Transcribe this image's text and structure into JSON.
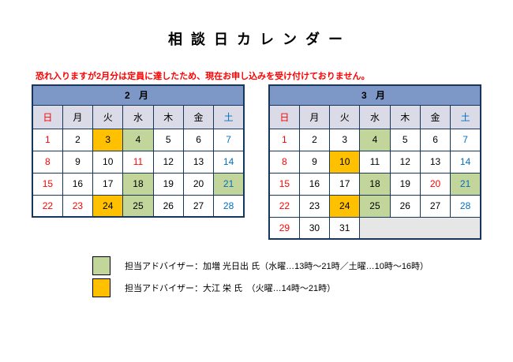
{
  "title": "相 談 日 カ レ ン ダ ー",
  "notice": "恐れ入りますが2月分は定員に達したため、現在お申し込みを受け付けておりません。",
  "colors": {
    "red": "#FF0000",
    "blue": "#0070C0",
    "green": "#C2D69B",
    "orange": "#FFC000",
    "header_bg": "#7D97C6",
    "dayrow_bg": "#DBDBE7",
    "empty_bg": "#E7E6E6",
    "border": "#16365C",
    "month_text": "#17375E",
    "text": "#000000"
  },
  "day_headers": [
    "日",
    "月",
    "火",
    "水",
    "木",
    "金",
    "土"
  ],
  "calendars": [
    {
      "month_label": "2 月",
      "weeks": [
        [
          {
            "d": "1",
            "c": "red"
          },
          {
            "d": "2"
          },
          {
            "d": "3",
            "bg": "orange"
          },
          {
            "d": "4",
            "bg": "green"
          },
          {
            "d": "5"
          },
          {
            "d": "6"
          },
          {
            "d": "7",
            "c": "blue"
          }
        ],
        [
          {
            "d": "8",
            "c": "red"
          },
          {
            "d": "9"
          },
          {
            "d": "10"
          },
          {
            "d": "11",
            "c": "red"
          },
          {
            "d": "12"
          },
          {
            "d": "13"
          },
          {
            "d": "14",
            "c": "blue"
          }
        ],
        [
          {
            "d": "15",
            "c": "red"
          },
          {
            "d": "16"
          },
          {
            "d": "17"
          },
          {
            "d": "18",
            "bg": "green"
          },
          {
            "d": "19"
          },
          {
            "d": "20"
          },
          {
            "d": "21",
            "c": "blue",
            "bg": "green"
          }
        ],
        [
          {
            "d": "22",
            "c": "red"
          },
          {
            "d": "23",
            "c": "red"
          },
          {
            "d": "24",
            "bg": "orange"
          },
          {
            "d": "25",
            "bg": "green"
          },
          {
            "d": "26"
          },
          {
            "d": "27"
          },
          {
            "d": "28",
            "c": "blue"
          }
        ]
      ]
    },
    {
      "month_label": "3 月",
      "weeks": [
        [
          {
            "d": "1",
            "c": "red"
          },
          {
            "d": "2"
          },
          {
            "d": "3"
          },
          {
            "d": "4",
            "bg": "green"
          },
          {
            "d": "5"
          },
          {
            "d": "6"
          },
          {
            "d": "7",
            "c": "blue"
          }
        ],
        [
          {
            "d": "8",
            "c": "red"
          },
          {
            "d": "9"
          },
          {
            "d": "10",
            "bg": "orange"
          },
          {
            "d": "11"
          },
          {
            "d": "12"
          },
          {
            "d": "13"
          },
          {
            "d": "14",
            "c": "blue"
          }
        ],
        [
          {
            "d": "15",
            "c": "red"
          },
          {
            "d": "16"
          },
          {
            "d": "17"
          },
          {
            "d": "18",
            "bg": "green"
          },
          {
            "d": "19"
          },
          {
            "d": "20",
            "c": "red"
          },
          {
            "d": "21",
            "c": "blue",
            "bg": "green"
          }
        ],
        [
          {
            "d": "22",
            "c": "red"
          },
          {
            "d": "23"
          },
          {
            "d": "24",
            "bg": "orange"
          },
          {
            "d": "25",
            "bg": "green"
          },
          {
            "d": "26"
          },
          {
            "d": "27"
          },
          {
            "d": "28",
            "c": "blue"
          }
        ],
        [
          {
            "d": "29",
            "c": "red"
          },
          {
            "d": "30"
          },
          {
            "d": "31"
          },
          {
            "empty": true,
            "span": 4
          }
        ]
      ]
    }
  ],
  "legend": [
    {
      "color": "green",
      "text": "担当アドバイザー：加増 光日出 氏（水曜…13時～21時／土曜…10時～16時）"
    },
    {
      "color": "orange",
      "text": "担当アドバイザー：大江 栄 氏　（火曜…14時～21時）"
    }
  ]
}
